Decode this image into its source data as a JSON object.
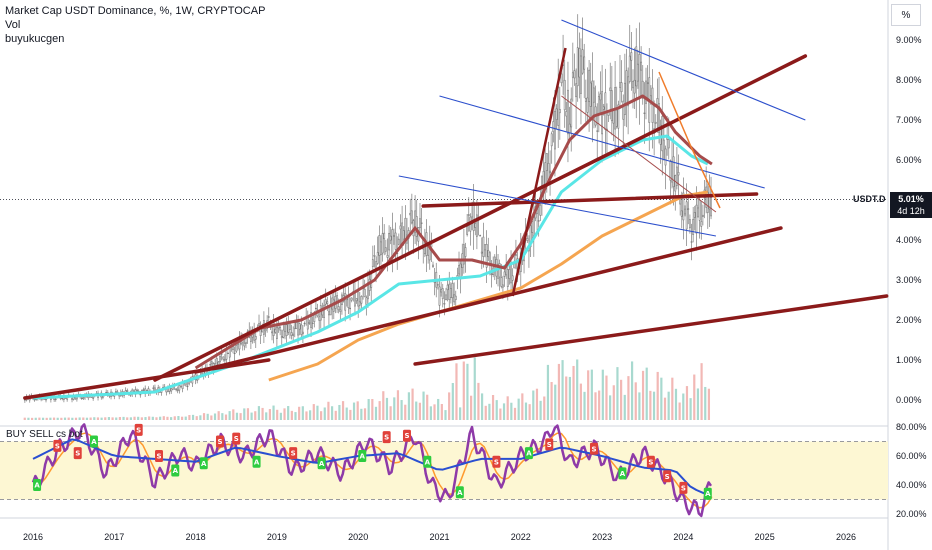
{
  "header": {
    "title": "Market Cap USDT Dominance, %, 1W, CRYPTOCAP",
    "line2": "Vol",
    "line3": "buyukucgen"
  },
  "scale_button": "%",
  "price_tag": {
    "symbol": "USDT.D",
    "value": "5.01%",
    "countdown": "4d 12h"
  },
  "indicator_label": "BUY SELL cs bot",
  "colors": {
    "candle": "#7a7a7a",
    "trendline": "#8b1a1a",
    "channel": "#2c4fcc",
    "ma_cyan": "#59e6e6",
    "ma_orange": "#f5a550",
    "ma_brown": "#a64b4b",
    "buy": "#2ecc40",
    "sell": "#e0413a",
    "osc_purple": "#8e3aa8",
    "osc_orange": "#ff9a2e",
    "osc_blue": "#2a4fd1",
    "band": "#fdf7d3"
  },
  "chart_data": [
    {
      "type": "line",
      "title": "Market Cap USDT Dominance, %, 1W, CRYPTOCAP",
      "yaxis": {
        "ticks": [
          "9.00%",
          "8.00%",
          "7.00%",
          "6.00%",
          "5.00%",
          "4.00%",
          "3.00%",
          "2.00%",
          "1.00%",
          "0.00%"
        ],
        "range": [
          -0.3,
          9.5
        ]
      },
      "xaxis": {
        "ticks": [
          "2016",
          "2017",
          "2018",
          "2019",
          "2020",
          "2021",
          "2022",
          "2023",
          "2024",
          "2025",
          "2026"
        ]
      },
      "last_value": 5.01,
      "series": [
        {
          "values_key": "price",
          "points": [
            [
              2015.9,
              0.05
            ],
            [
              2016.5,
              0.07
            ],
            [
              2017.0,
              0.15
            ],
            [
              2017.4,
              0.22
            ],
            [
              2017.8,
              0.3
            ],
            [
              2018.0,
              0.55
            ],
            [
              2018.3,
              1.0
            ],
            [
              2018.6,
              1.5
            ],
            [
              2018.9,
              1.9
            ],
            [
              2019.0,
              1.7
            ],
            [
              2019.3,
              1.8
            ],
            [
              2019.6,
              2.3
            ],
            [
              2019.9,
              2.5
            ],
            [
              2020.1,
              2.6
            ],
            [
              2020.25,
              3.8
            ],
            [
              2020.5,
              4.0
            ],
            [
              2020.7,
              4.5
            ],
            [
              2020.9,
              3.6
            ],
            [
              2021.0,
              2.6
            ],
            [
              2021.2,
              2.7
            ],
            [
              2021.4,
              4.7
            ],
            [
              2021.6,
              3.5
            ],
            [
              2021.8,
              3.0
            ],
            [
              2022.0,
              3.5
            ],
            [
              2022.2,
              4.6
            ],
            [
              2022.4,
              6.5
            ],
            [
              2022.5,
              8.0
            ],
            [
              2022.6,
              7.0
            ],
            [
              2022.7,
              8.5
            ],
            [
              2022.9,
              7.3
            ],
            [
              2023.0,
              7.2
            ],
            [
              2023.2,
              7.3
            ],
            [
              2023.4,
              8.3
            ],
            [
              2023.6,
              7.4
            ],
            [
              2023.7,
              6.9
            ],
            [
              2023.8,
              6.2
            ],
            [
              2023.9,
              5.6
            ],
            [
              2024.0,
              4.8
            ],
            [
              2024.1,
              4.3
            ],
            [
              2024.3,
              5.0
            ]
          ]
        },
        {
          "name": "",
          "values_key": "ma_cyan",
          "points": [
            [
              2016.0,
              0.05
            ],
            [
              2017.5,
              0.2
            ],
            [
              2018.5,
              0.9
            ],
            [
              2019.5,
              1.7
            ],
            [
              2020.0,
              2.2
            ],
            [
              2020.5,
              2.9
            ],
            [
              2021.0,
              3.0
            ],
            [
              2021.5,
              3.1
            ],
            [
              2022.0,
              3.5
            ],
            [
              2022.5,
              5.2
            ],
            [
              2023.0,
              6.0
            ],
            [
              2023.5,
              6.5
            ],
            [
              2023.8,
              6.6
            ],
            [
              2024.1,
              6.1
            ],
            [
              2024.3,
              5.9
            ]
          ]
        },
        {
          "name": "",
          "values_key": "ma_orange",
          "points": [
            [
              2018.9,
              0.5
            ],
            [
              2019.5,
              0.9
            ],
            [
              2020.0,
              1.5
            ],
            [
              2020.5,
              1.9
            ],
            [
              2021.0,
              2.2
            ],
            [
              2021.5,
              2.5
            ],
            [
              2022.0,
              2.8
            ],
            [
              2022.5,
              3.4
            ],
            [
              2023.0,
              4.1
            ],
            [
              2023.5,
              4.6
            ],
            [
              2024.0,
              5.1
            ],
            [
              2024.3,
              5.2
            ]
          ]
        },
        {
          "name": "",
          "values_key": "ma_brown",
          "points": [
            [
              2018.0,
              0.8
            ],
            [
              2018.8,
              1.8
            ],
            [
              2019.3,
              2.0
            ],
            [
              2019.8,
              2.5
            ],
            [
              2020.2,
              3.0
            ],
            [
              2020.7,
              4.3
            ],
            [
              2021.0,
              3.5
            ],
            [
              2021.4,
              3.5
            ],
            [
              2021.8,
              3.3
            ],
            [
              2022.0,
              3.9
            ],
            [
              2022.3,
              5.3
            ],
            [
              2022.6,
              6.5
            ],
            [
              2022.9,
              7.1
            ],
            [
              2023.2,
              7.3
            ],
            [
              2023.5,
              7.6
            ],
            [
              2023.7,
              7.3
            ],
            [
              2023.9,
              6.7
            ],
            [
              2024.2,
              6.1
            ],
            [
              2024.35,
              5.9
            ]
          ]
        }
      ],
      "trendlines": [
        {
          "from": [
            2015.9,
            0.05
          ],
          "to": [
            2018.9,
            1.0
          ]
        },
        {
          "from": [
            2017.5,
            0.5
          ],
          "to": [
            2025.5,
            8.6
          ]
        },
        {
          "from": [
            2018.0,
            0.7
          ],
          "to": [
            2025.2,
            4.3
          ]
        },
        {
          "from": [
            2020.8,
            4.85
          ],
          "to": [
            2024.9,
            5.15
          ]
        },
        {
          "from": [
            2020.7,
            0.9
          ],
          "to": [
            2026.5,
            2.6
          ]
        }
      ],
      "channels": [
        {
          "from": [
            2022.5,
            9.5
          ],
          "to": [
            2025.5,
            7.0
          ]
        },
        {
          "from": [
            2021.0,
            7.6
          ],
          "to": [
            2025.0,
            5.3
          ]
        },
        {
          "from": [
            2020.5,
            5.6
          ],
          "to": [
            2024.4,
            4.1
          ]
        }
      ]
    },
    {
      "type": "line",
      "title": "BUY SELL cs bot",
      "yaxis": {
        "ticks": [
          "80.00%",
          "60.00%",
          "40.00%",
          "20.00%"
        ],
        "range": [
          17,
          85
        ]
      },
      "band": [
        30,
        70
      ],
      "series": [
        {
          "name": "",
          "values_key": "osc_purple",
          "points": [
            [
              2016.0,
              38
            ],
            [
              2016.3,
              64
            ],
            [
              2016.6,
              79
            ],
            [
              2016.9,
              48
            ],
            [
              2017.2,
              76
            ],
            [
              2017.5,
              42
            ],
            [
              2017.8,
              62
            ],
            [
              2018.0,
              53
            ],
            [
              2018.3,
              70
            ],
            [
              2018.6,
              60
            ],
            [
              2018.9,
              75
            ],
            [
              2019.2,
              50
            ],
            [
              2019.5,
              62
            ],
            [
              2019.8,
              48
            ],
            [
              2020.1,
              70
            ],
            [
              2020.4,
              52
            ],
            [
              2020.7,
              75
            ],
            [
              2020.9,
              40
            ],
            [
              2021.1,
              30
            ],
            [
              2021.4,
              75
            ],
            [
              2021.7,
              40
            ],
            [
              2022.0,
              60
            ],
            [
              2022.3,
              70
            ],
            [
              2022.4,
              82
            ],
            [
              2022.6,
              55
            ],
            [
              2022.9,
              66
            ],
            [
              2023.2,
              45
            ],
            [
              2023.5,
              62
            ],
            [
              2023.8,
              45
            ],
            [
              2024.0,
              28
            ],
            [
              2024.2,
              22
            ],
            [
              2024.35,
              42
            ]
          ]
        },
        {
          "name": "",
          "values_key": "osc_blue",
          "points": [
            [
              2016.0,
              58
            ],
            [
              2016.5,
              72
            ],
            [
              2017.0,
              60
            ],
            [
              2017.5,
              58
            ],
            [
              2018.0,
              56
            ],
            [
              2018.5,
              66
            ],
            [
              2019.0,
              60
            ],
            [
              2019.5,
              55
            ],
            [
              2020.0,
              60
            ],
            [
              2020.5,
              62
            ],
            [
              2021.0,
              50
            ],
            [
              2021.5,
              58
            ],
            [
              2022.0,
              58
            ],
            [
              2022.5,
              66
            ],
            [
              2023.0,
              60
            ],
            [
              2023.5,
              52
            ],
            [
              2023.9,
              50
            ],
            [
              2024.1,
              38
            ],
            [
              2024.35,
              32
            ]
          ]
        }
      ],
      "signals": [
        {
          "x": 2016.05,
          "y": 40,
          "label": "A"
        },
        {
          "x": 2016.3,
          "y": 67,
          "label": "S"
        },
        {
          "x": 2016.55,
          "y": 62,
          "label": "S"
        },
        {
          "x": 2016.75,
          "y": 70,
          "label": "A"
        },
        {
          "x": 2017.3,
          "y": 78,
          "label": "S"
        },
        {
          "x": 2017.55,
          "y": 60,
          "label": "S"
        },
        {
          "x": 2017.75,
          "y": 50,
          "label": "A"
        },
        {
          "x": 2018.1,
          "y": 55,
          "label": "A"
        },
        {
          "x": 2018.3,
          "y": 70,
          "label": "S"
        },
        {
          "x": 2018.5,
          "y": 72,
          "label": "S"
        },
        {
          "x": 2018.75,
          "y": 56,
          "label": "A"
        },
        {
          "x": 2019.2,
          "y": 62,
          "label": "S"
        },
        {
          "x": 2019.55,
          "y": 55,
          "label": "A"
        },
        {
          "x": 2020.05,
          "y": 60,
          "label": "A"
        },
        {
          "x": 2020.35,
          "y": 73,
          "label": "S"
        },
        {
          "x": 2020.6,
          "y": 74,
          "label": "S"
        },
        {
          "x": 2020.85,
          "y": 56,
          "label": "A"
        },
        {
          "x": 2021.25,
          "y": 35,
          "label": "A"
        },
        {
          "x": 2021.7,
          "y": 56,
          "label": "S"
        },
        {
          "x": 2022.1,
          "y": 62,
          "label": "A"
        },
        {
          "x": 2022.35,
          "y": 68,
          "label": "S"
        },
        {
          "x": 2022.9,
          "y": 65,
          "label": "S"
        },
        {
          "x": 2023.25,
          "y": 48,
          "label": "A"
        },
        {
          "x": 2023.6,
          "y": 56,
          "label": "S"
        },
        {
          "x": 2023.8,
          "y": 46,
          "label": "S"
        },
        {
          "x": 2024.0,
          "y": 38,
          "label": "S"
        },
        {
          "x": 2024.3,
          "y": 34,
          "label": "A"
        }
      ]
    }
  ]
}
